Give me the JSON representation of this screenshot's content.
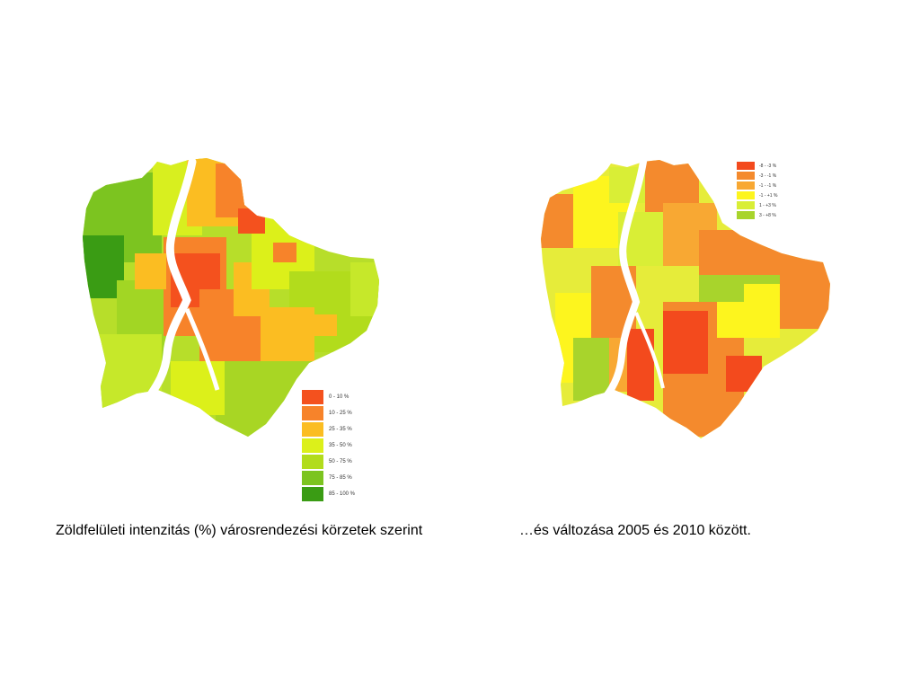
{
  "left_map": {
    "legend": [
      {
        "label": "0 - 10 %",
        "color": "#f4511e"
      },
      {
        "label": "10 - 25 %",
        "color": "#f7832a"
      },
      {
        "label": "25 - 35 %",
        "color": "#fbbd22"
      },
      {
        "label": "35 - 50 %",
        "color": "#dcf01a"
      },
      {
        "label": "50 - 75 %",
        "color": "#b2dc1c"
      },
      {
        "label": "75 - 85 %",
        "color": "#7cc420"
      },
      {
        "label": "85 - 100 %",
        "color": "#3a9c14"
      }
    ],
    "caption": "Zöldfelületi intenzitás (%) városrendezési körzetek szerint"
  },
  "right_map": {
    "legend": [
      {
        "label": "-8 - -3 %",
        "color": "#f34a1d"
      },
      {
        "label": "-3 - -1 %",
        "color": "#f48a2d"
      },
      {
        "label": "-1 - -1 %",
        "color": "#f8a833"
      },
      {
        "label": "-1 - +1 %",
        "color": "#fdf51e"
      },
      {
        "label": "1 - +3 %",
        "color": "#d9ee36"
      },
      {
        "label": "3 - +8 %",
        "color": "#a8d42c"
      }
    ],
    "caption": "…és változása 2005 és 2010 között."
  }
}
